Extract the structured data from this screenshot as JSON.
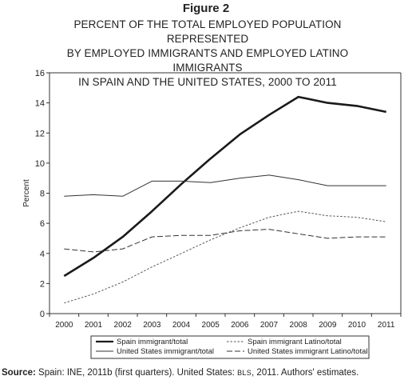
{
  "figure": {
    "label": "Figure 2",
    "title_lines": [
      "PERCENT OF THE TOTAL EMPLOYED POPULATION REPRESENTED",
      "BY EMPLOYED IMMIGRANTS AND EMPLOYED LATINO IMMIGRANTS",
      "IN SPAIN AND THE UNITED STATES, 2000 TO 2011"
    ]
  },
  "source": {
    "label": "Source:",
    "part1": "Spain: INE, 2011b (first quarters). United States: ",
    "bls": "BLS",
    "part2": ", 2011. Authors' estimates."
  },
  "chart_data": {
    "type": "line",
    "title": "PERCENT OF THE TOTAL EMPLOYED POPULATION REPRESENTED BY EMPLOYED IMMIGRANTS AND EMPLOYED LATINO IMMIGRANTS IN SPAIN AND THE UNITED STATES, 2000 TO 2011",
    "xlabel": "",
    "ylabel": "Percent",
    "ylim": [
      0,
      16
    ],
    "yticks": [
      0,
      2,
      4,
      6,
      8,
      10,
      12,
      14,
      16
    ],
    "categories": [
      "2000",
      "2001",
      "2002",
      "2003",
      "2004",
      "2005",
      "2006",
      "2007",
      "2008",
      "2009",
      "2010",
      "2011"
    ],
    "grid": false,
    "legend_position": "bottom",
    "series": [
      {
        "name": "Spain immigrant/total",
        "style": "thick-solid",
        "values": [
          2.5,
          3.7,
          5.1,
          6.8,
          8.6,
          10.3,
          11.9,
          13.2,
          14.4,
          14.0,
          13.8,
          13.4
        ]
      },
      {
        "name": "Spain immigrant Latino/total",
        "style": "dashed",
        "values": [
          0.7,
          1.3,
          2.1,
          3.1,
          4.0,
          4.9,
          5.7,
          6.4,
          6.8,
          6.5,
          6.4,
          6.1
        ]
      },
      {
        "name": "United States immigrant/total",
        "style": "thin-solid",
        "values": [
          7.8,
          7.9,
          7.8,
          8.8,
          8.8,
          8.7,
          9.0,
          9.2,
          8.9,
          8.5,
          8.5,
          8.5
        ]
      },
      {
        "name": "United States immigrant Latino/total",
        "style": "long-dashed",
        "values": [
          4.3,
          4.1,
          4.3,
          5.1,
          5.2,
          5.2,
          5.5,
          5.6,
          5.3,
          5.0,
          5.1,
          5.1
        ]
      }
    ],
    "legend_order": [
      0,
      1,
      2,
      3
    ]
  }
}
